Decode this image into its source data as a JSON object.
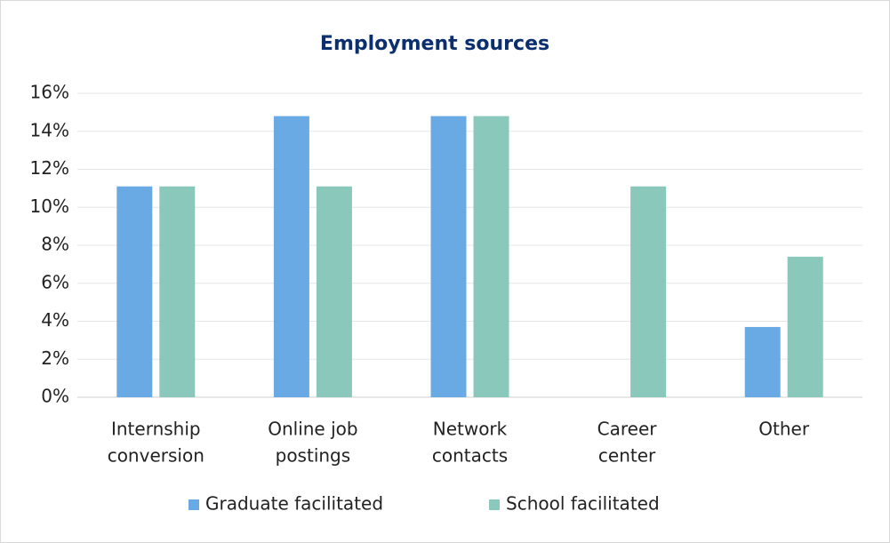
{
  "chart_data": {
    "type": "bar",
    "title": "Employment sources",
    "categories": [
      [
        "Internship",
        "conversion"
      ],
      [
        "Online job",
        "postings"
      ],
      [
        "Network",
        "contacts"
      ],
      [
        "Career",
        "center"
      ],
      [
        "Other"
      ]
    ],
    "series": [
      {
        "name": "Graduate facilitated",
        "color": "#6aaae4",
        "values": [
          11.1,
          14.8,
          14.8,
          0,
          3.7
        ]
      },
      {
        "name": "School facilitated",
        "color": "#8ac8bc",
        "values": [
          11.1,
          11.1,
          14.8,
          11.1,
          7.4
        ]
      }
    ],
    "ylim": [
      0,
      16
    ],
    "yticks": [
      {
        "value": 0,
        "label": "0%"
      },
      {
        "value": 2,
        "label": "2%"
      },
      {
        "value": 4,
        "label": "4%"
      },
      {
        "value": 6,
        "label": "6%"
      },
      {
        "value": 8,
        "label": "8%"
      },
      {
        "value": 10,
        "label": "10%"
      },
      {
        "value": 12,
        "label": "12%"
      },
      {
        "value": 14,
        "label": "14%"
      },
      {
        "value": 16,
        "label": "16%"
      }
    ],
    "grid": true
  }
}
